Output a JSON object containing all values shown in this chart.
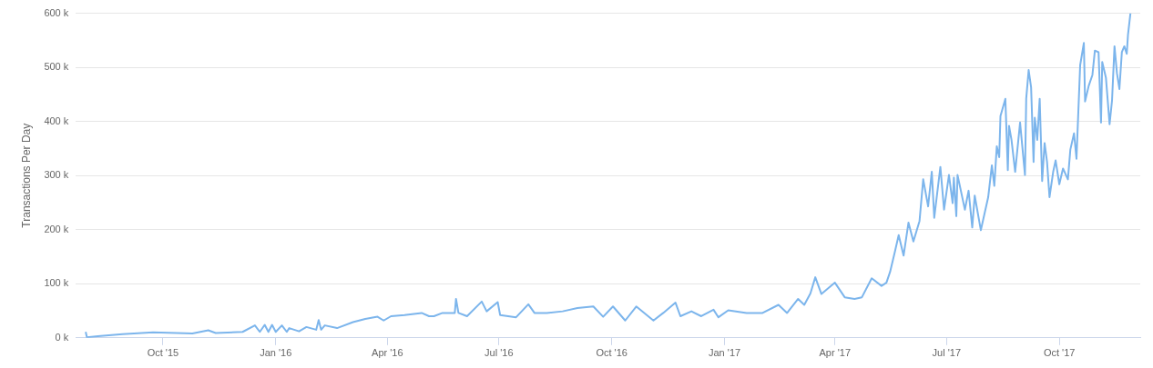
{
  "chart_data": {
    "type": "line",
    "ylabel": "Transactions Per Day",
    "xlim": [
      "2015-07-22",
      "2017-12-06"
    ],
    "xticks": [
      {
        "value": "2015-10-01",
        "label": "Oct '15"
      },
      {
        "value": "2016-01-01",
        "label": "Jan '16"
      },
      {
        "value": "2016-04-01",
        "label": "Apr '16"
      },
      {
        "value": "2016-07-01",
        "label": "Jul '16"
      },
      {
        "value": "2016-10-01",
        "label": "Oct '16"
      },
      {
        "value": "2017-01-01",
        "label": "Jan '17"
      },
      {
        "value": "2017-04-01",
        "label": "Apr '17"
      },
      {
        "value": "2017-07-01",
        "label": "Jul '17"
      },
      {
        "value": "2017-10-01",
        "label": "Oct '17"
      }
    ],
    "ylim": [
      0,
      600000
    ],
    "yticks": [
      {
        "value": 0,
        "label": "0 k"
      },
      {
        "value": 100000,
        "label": "100 k"
      },
      {
        "value": 200000,
        "label": "200 k"
      },
      {
        "value": 300000,
        "label": "300 k"
      },
      {
        "value": 400000,
        "label": "400 k"
      },
      {
        "value": 500000,
        "label": "500 k"
      },
      {
        "value": 600000,
        "label": "600 k"
      }
    ],
    "grid": "y",
    "legend": false,
    "marker": "none",
    "line_style": "solid",
    "x": [
      "2015-07-30",
      "2015-07-31",
      "2015-08-09",
      "2015-08-29",
      "2015-09-23",
      "2015-10-25",
      "2015-11-07",
      "2015-11-13",
      "2015-12-05",
      "2015-12-15",
      "2015-12-19",
      "2015-12-23",
      "2015-12-26",
      "2015-12-29",
      "2016-01-01",
      "2016-01-06",
      "2016-01-10",
      "2016-01-12",
      "2016-01-20",
      "2016-01-26",
      "2016-02-03",
      "2016-02-05",
      "2016-02-07",
      "2016-02-10",
      "2016-02-20",
      "2016-03-04",
      "2016-03-14",
      "2016-03-24",
      "2016-03-29",
      "2016-04-04",
      "2016-04-15",
      "2016-04-29",
      "2016-05-05",
      "2016-05-09",
      "2016-05-16",
      "2016-05-26",
      "2016-05-27",
      "2016-05-29",
      "2016-06-05",
      "2016-06-17",
      "2016-06-21",
      "2016-06-30",
      "2016-07-02",
      "2016-07-15",
      "2016-07-25",
      "2016-07-30",
      "2016-08-09",
      "2016-08-22",
      "2016-09-03",
      "2016-09-16",
      "2016-09-24",
      "2016-10-02",
      "2016-10-12",
      "2016-10-21",
      "2016-11-04",
      "2016-11-12",
      "2016-11-22",
      "2016-11-26",
      "2016-12-05",
      "2016-12-13",
      "2016-12-23",
      "2016-12-27",
      "2017-01-04",
      "2017-01-19",
      "2017-02-01",
      "2017-02-14",
      "2017-02-21",
      "2017-03-02",
      "2017-03-07",
      "2017-03-12",
      "2017-03-16",
      "2017-03-21",
      "2017-04-01",
      "2017-04-09",
      "2017-04-17",
      "2017-04-23",
      "2017-05-01",
      "2017-05-09",
      "2017-05-13",
      "2017-05-16",
      "2017-05-20",
      "2017-05-23",
      "2017-05-27",
      "2017-05-31",
      "2017-06-04",
      "2017-06-09",
      "2017-06-12",
      "2017-06-16",
      "2017-06-19",
      "2017-06-21",
      "2017-06-26",
      "2017-06-29",
      "2017-07-03",
      "2017-07-06",
      "2017-07-07",
      "2017-07-09",
      "2017-07-10",
      "2017-07-16",
      "2017-07-19",
      "2017-07-22",
      "2017-07-24",
      "2017-07-29",
      "2017-08-04",
      "2017-08-07",
      "2017-08-09",
      "2017-08-11",
      "2017-08-13",
      "2017-08-14",
      "2017-08-18",
      "2017-08-20",
      "2017-08-21",
      "2017-08-23",
      "2017-08-26",
      "2017-08-30",
      "2017-09-03",
      "2017-09-04",
      "2017-09-06",
      "2017-09-08",
      "2017-09-10",
      "2017-09-11",
      "2017-09-13",
      "2017-09-15",
      "2017-09-17",
      "2017-09-19",
      "2017-09-21",
      "2017-09-23",
      "2017-09-26",
      "2017-09-28",
      "2017-10-01",
      "2017-10-04",
      "2017-10-08",
      "2017-10-10",
      "2017-10-13",
      "2017-10-15",
      "2017-10-18",
      "2017-10-21",
      "2017-10-22",
      "2017-10-25",
      "2017-10-28",
      "2017-10-30",
      "2017-11-02",
      "2017-11-04",
      "2017-11-05",
      "2017-11-08",
      "2017-11-11",
      "2017-11-13",
      "2017-11-15",
      "2017-11-17",
      "2017-11-19",
      "2017-11-21",
      "2017-11-23",
      "2017-11-25",
      "2017-11-26",
      "2017-11-28"
    ],
    "series": [
      {
        "color": "#7cb5ec",
        "values": [
          11000,
          1000,
          3000,
          7000,
          10000,
          8000,
          14000,
          9000,
          11000,
          23000,
          11000,
          24000,
          11000,
          24000,
          11000,
          23000,
          11000,
          18000,
          12000,
          20000,
          15000,
          33000,
          15000,
          23000,
          18000,
          29000,
          35000,
          39000,
          32000,
          40000,
          42000,
          46000,
          40000,
          40000,
          46000,
          46000,
          72000,
          46000,
          40000,
          67000,
          49000,
          66000,
          42000,
          38000,
          62000,
          46000,
          46000,
          49000,
          55000,
          58000,
          39000,
          58000,
          32000,
          58000,
          32000,
          46000,
          65000,
          40000,
          49000,
          40000,
          52000,
          38000,
          51000,
          46000,
          46000,
          61000,
          46000,
          72000,
          61000,
          82000,
          112000,
          81000,
          102000,
          75000,
          72000,
          75000,
          110000,
          96000,
          102000,
          122000,
          160000,
          190000,
          152000,
          213000,
          178000,
          216000,
          293000,
          243000,
          307000,
          222000,
          316000,
          237000,
          301000,
          249000,
          296000,
          225000,
          301000,
          237000,
          272000,
          204000,
          263000,
          199000,
          260000,
          319000,
          281000,
          354000,
          334000,
          410000,
          442000,
          310000,
          392000,
          366000,
          307000,
          398000,
          301000,
          442000,
          495000,
          463000,
          325000,
          407000,
          366000,
          442000,
          290000,
          360000,
          325000,
          260000,
          307000,
          328000,
          284000,
          313000,
          293000,
          348000,
          378000,
          331000,
          504000,
          545000,
          437000,
          466000,
          486000,
          531000,
          528000,
          398000,
          510000,
          481000,
          395000,
          439000,
          539000,
          489000,
          460000,
          528000,
          539000,
          525000,
          560000,
          600000
        ]
      }
    ]
  }
}
